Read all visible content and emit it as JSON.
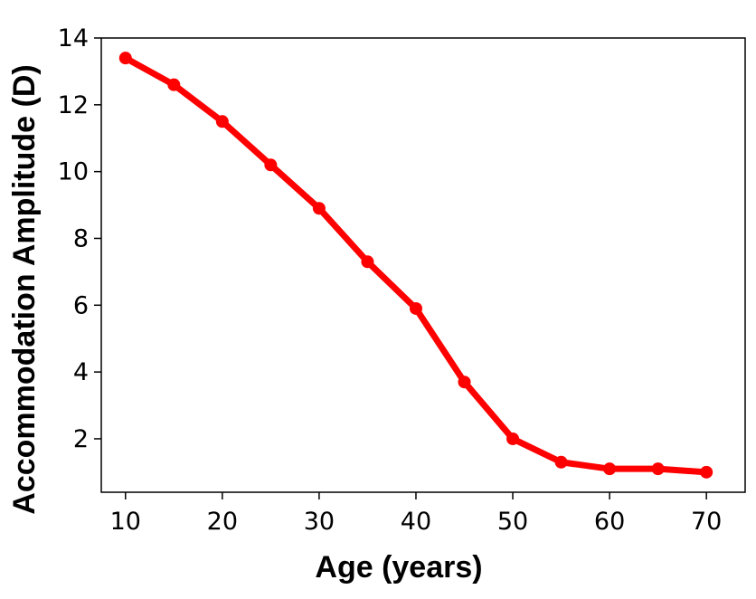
{
  "chart_data": {
    "type": "line",
    "title": "",
    "xlabel": "Age (years)",
    "ylabel": "Accommodation Amplitude (D)",
    "xlim": [
      7.5,
      74
    ],
    "ylim": [
      0.4,
      14
    ],
    "xticks": [
      10,
      20,
      30,
      40,
      50,
      60,
      70
    ],
    "yticks": [
      2,
      4,
      6,
      8,
      10,
      12,
      14
    ],
    "grid": false,
    "legend": "none",
    "series": [
      {
        "color": "#ff0000",
        "x": [
          10,
          15,
          20,
          25,
          30,
          35,
          40,
          45,
          50,
          55,
          60,
          65,
          70
        ],
        "y": [
          13.4,
          12.6,
          11.5,
          10.2,
          8.9,
          7.3,
          5.9,
          3.7,
          2.0,
          1.3,
          1.1,
          1.1,
          1.0
        ]
      }
    ]
  }
}
